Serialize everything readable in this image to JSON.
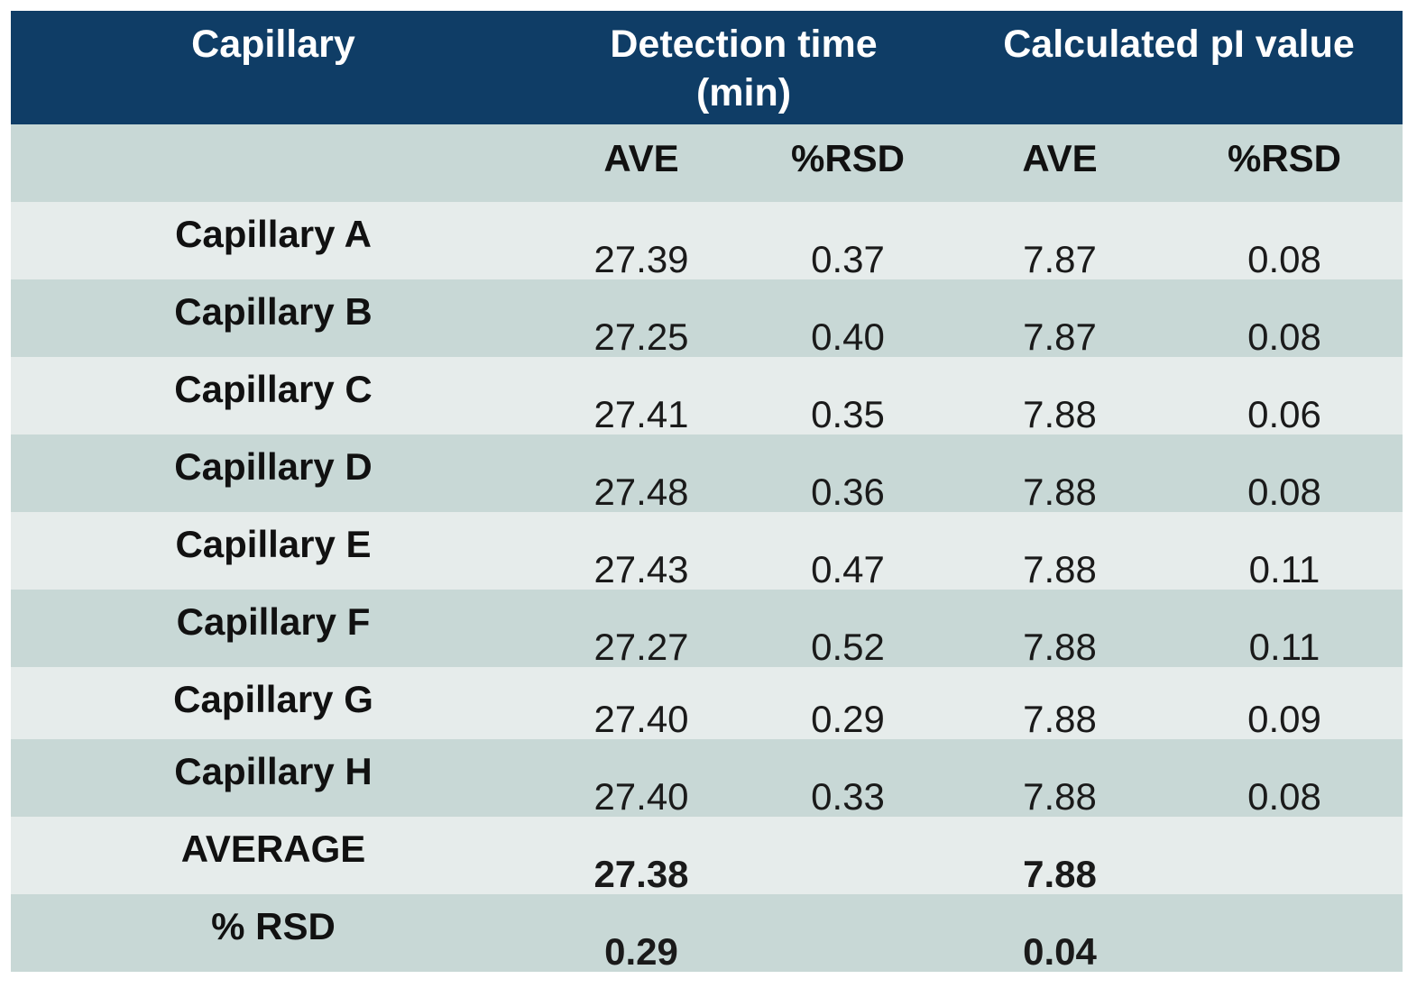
{
  "header": {
    "capillary": "Capillary",
    "detection_time_line1": "Detection time",
    "detection_time_line2": "(min)",
    "pi_value": "Calculated pI value"
  },
  "subheader": {
    "ave_1": "AVE",
    "rsd_1": "%RSD",
    "ave_2": "AVE",
    "rsd_2": "%RSD"
  },
  "rows": [
    {
      "name": "Capillary A",
      "dt_ave": "27.39",
      "dt_rsd": "0.37",
      "pi_ave": "7.87",
      "pi_rsd": "0.08"
    },
    {
      "name": "Capillary B",
      "dt_ave": "27.25",
      "dt_rsd": "0.40",
      "pi_ave": "7.87",
      "pi_rsd": "0.08"
    },
    {
      "name": "Capillary C",
      "dt_ave": "27.41",
      "dt_rsd": "0.35",
      "pi_ave": "7.88",
      "pi_rsd": "0.06"
    },
    {
      "name": "Capillary D",
      "dt_ave": "27.48",
      "dt_rsd": "0.36",
      "pi_ave": "7.88",
      "pi_rsd": "0.08"
    },
    {
      "name": "Capillary E",
      "dt_ave": "27.43",
      "dt_rsd": "0.47",
      "pi_ave": "7.88",
      "pi_rsd": "0.11"
    },
    {
      "name": "Capillary F",
      "dt_ave": "27.27",
      "dt_rsd": "0.52",
      "pi_ave": "7.88",
      "pi_rsd": "0.11"
    },
    {
      "name": "Capillary G",
      "dt_ave": "27.40",
      "dt_rsd": "0.29",
      "pi_ave": "7.88",
      "pi_rsd": "0.09"
    },
    {
      "name": "Capillary H",
      "dt_ave": "27.40",
      "dt_rsd": "0.33",
      "pi_ave": "7.88",
      "pi_rsd": "0.08"
    }
  ],
  "summary": [
    {
      "name": "AVERAGE",
      "dt_ave": "27.38",
      "pi_ave": "7.88"
    },
    {
      "name": "% RSD",
      "dt_ave": "0.29",
      "pi_ave": "0.04"
    }
  ],
  "colors": {
    "header_bg": "#0f3d66",
    "row_light": "#e6eceb",
    "row_dark": "#c8d8d6"
  }
}
